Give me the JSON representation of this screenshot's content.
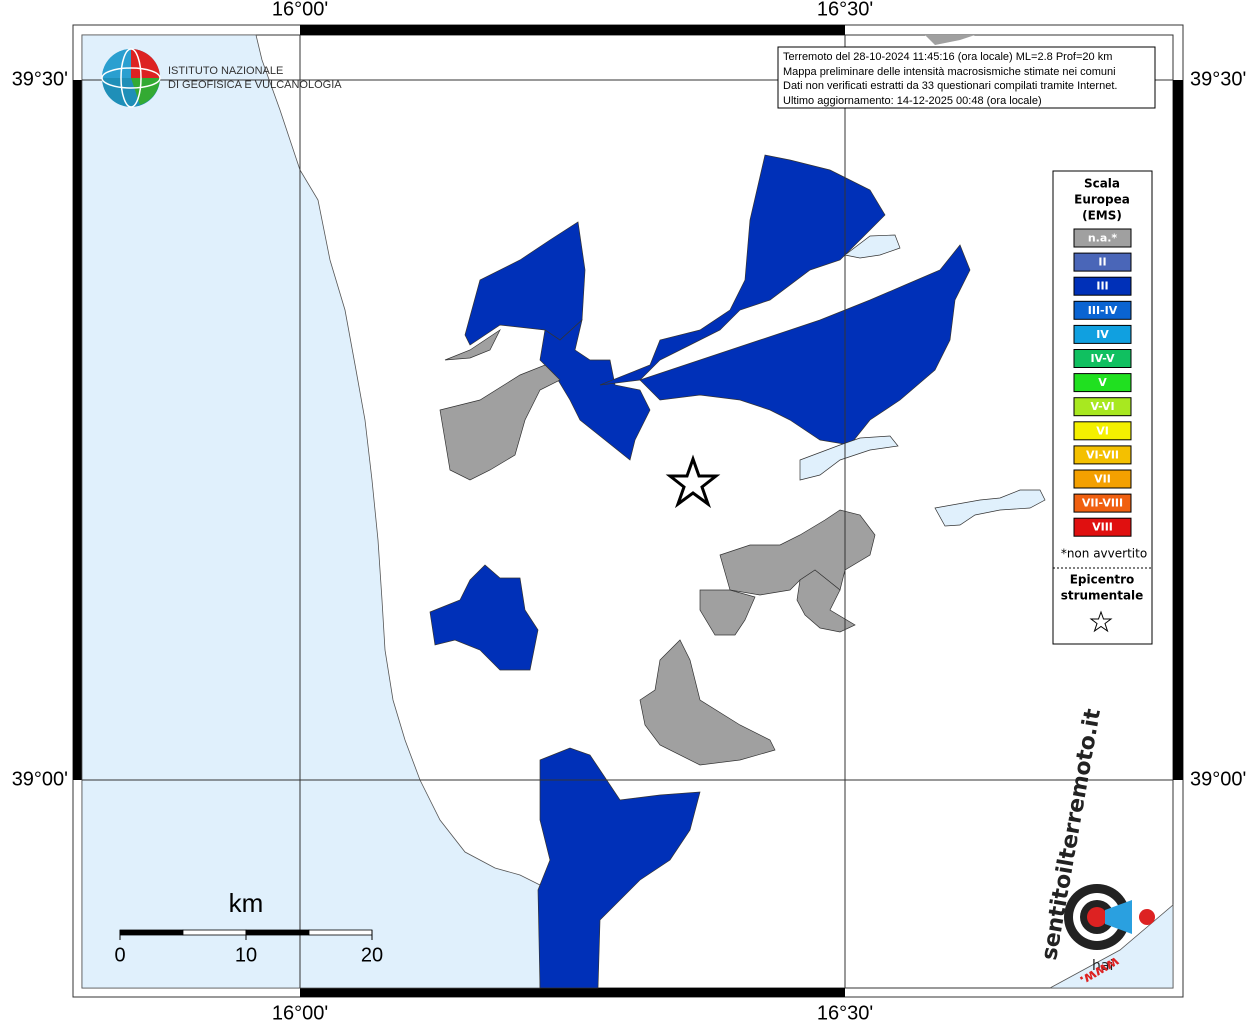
{
  "map": {
    "lon_labels": [
      "16°00'",
      "16°30'"
    ],
    "lat_labels": [
      "39°30'",
      "39°00'"
    ],
    "info": [
      "Terremoto del 28-10-2024 11:45:16 (ora locale) ML=2.8 Prof=20 km",
      "Mappa preliminare delle intensità macrosismiche stimate nei comuni",
      "Dati non verificati estratti da 33 questionari compilati tramite Internet.",
      "Ultimo aggiornamento: 14-12-2025 00:48 (ora locale)"
    ],
    "institute": [
      "ISTITUTO NAZIONALE",
      "DI GEOFISICA E VULCANOLOGIA"
    ],
    "legend": {
      "title": [
        "Scala",
        "Europea",
        "(EMS)"
      ],
      "items": [
        {
          "label": "n.a.*",
          "color": "#a0a0a0"
        },
        {
          "label": "II",
          "color": "#4a66b8"
        },
        {
          "label": "III",
          "color": "#0030b8"
        },
        {
          "label": "III-IV",
          "color": "#0a64d2"
        },
        {
          "label": "IV",
          "color": "#10a0e0"
        },
        {
          "label": "IV-V",
          "color": "#10c060"
        },
        {
          "label": "V",
          "color": "#20e020"
        },
        {
          "label": "V-VI",
          "color": "#a8e820"
        },
        {
          "label": "VI",
          "color": "#f4f000"
        },
        {
          "label": "VI-VII",
          "color": "#f4c000"
        },
        {
          "label": "VII",
          "color": "#f4a000"
        },
        {
          "label": "VII-VIII",
          "color": "#f06010"
        },
        {
          "label": "VIII",
          "color": "#e01010"
        }
      ],
      "note": "*non avvertito",
      "epicenter": [
        "Epicentro",
        "strumentale"
      ]
    },
    "scale": {
      "unit": "km",
      "ticks": [
        0,
        10,
        20
      ]
    },
    "logo": {
      "prefix": "hai",
      "text": "sentitoilterremoto.it",
      "www": "www."
    }
  }
}
